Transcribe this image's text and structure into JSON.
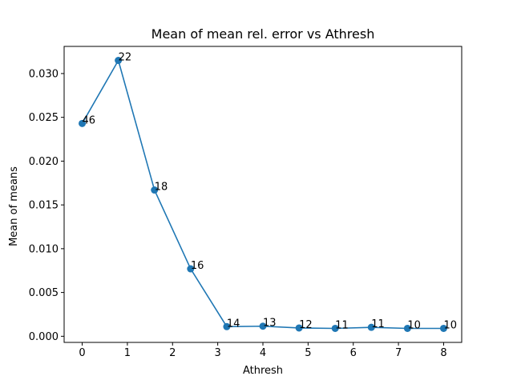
{
  "chart_data": {
    "type": "line",
    "title": "Mean of mean rel. error vs Athresh",
    "xlabel": "Athresh",
    "ylabel": "Mean of means",
    "xlim": [
      -0.4,
      8.4
    ],
    "ylim": [
      -0.0007,
      0.0331
    ],
    "xticks": [
      0,
      1,
      2,
      3,
      4,
      5,
      6,
      7,
      8
    ],
    "xtick_labels": [
      "0",
      "1",
      "2",
      "3",
      "4",
      "5",
      "6",
      "7",
      "8"
    ],
    "yticks": [
      0.0,
      0.005,
      0.01,
      0.015,
      0.02,
      0.025,
      0.03
    ],
    "ytick_labels": [
      "0.000",
      "0.005",
      "0.010",
      "0.015",
      "0.020",
      "0.025",
      "0.030"
    ],
    "grid": false,
    "series": [
      {
        "color": "#1f77b4",
        "marker": "circle",
        "x": [
          0,
          0.8,
          1.6,
          2.4,
          3.2,
          4.0,
          4.8,
          5.6,
          6.4,
          7.2,
          8.0
        ],
        "y": [
          0.0243,
          0.0315,
          0.0167,
          0.0077,
          0.0011,
          0.00115,
          0.00095,
          0.0009,
          0.00102,
          0.0009,
          0.0009
        ],
        "point_labels": [
          "46",
          "22",
          "18",
          "16",
          "14",
          "13",
          "12",
          "11",
          "11",
          "10",
          "10"
        ]
      }
    ]
  }
}
